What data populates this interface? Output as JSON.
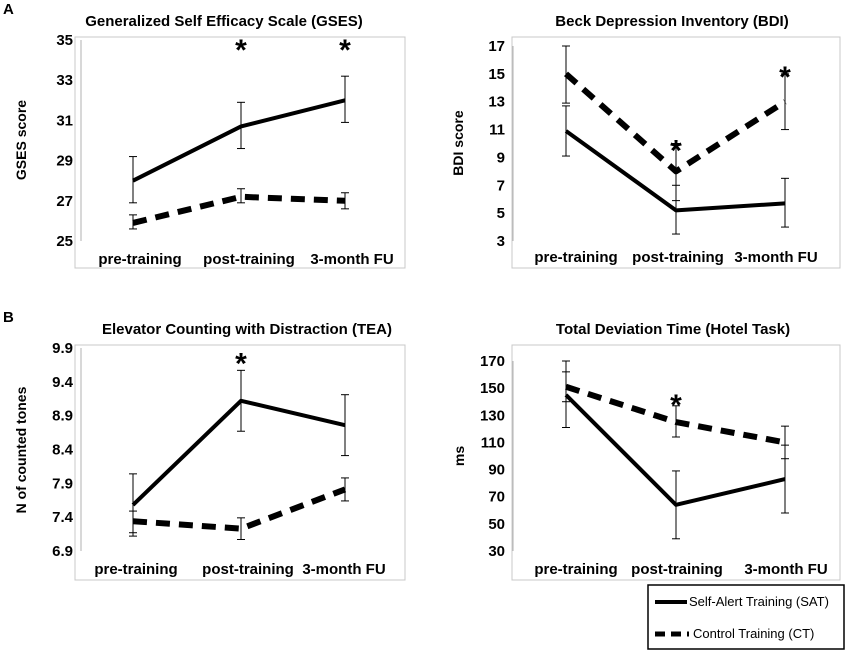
{
  "panel_labels": [
    "A",
    "B"
  ],
  "legend": {
    "sat_label": "Self-Alert Training (SAT)",
    "ct_label": "Control Training (CT)"
  },
  "chart_data": [
    {
      "type": "line",
      "title": "Generalized Self Efficacy Scale (GSES)",
      "xlabel": "",
      "ylabel": "GSES score",
      "categories": [
        "pre-training",
        "post-training",
        "3-month FU"
      ],
      "yticks": [
        "25",
        "27",
        "29",
        "31",
        "33",
        "35"
      ],
      "ylim": [
        25,
        35
      ],
      "series": [
        {
          "name": "Self-Alert Training (SAT)",
          "style": "solid",
          "values": [
            28.0,
            30.7,
            32.0
          ],
          "err_low": [
            26.9,
            29.6,
            30.9
          ],
          "err_high": [
            29.2,
            31.9,
            33.2
          ]
        },
        {
          "name": "Control Training (CT)",
          "style": "dashed",
          "values": [
            25.9,
            27.2,
            27.0
          ],
          "err_low": [
            25.6,
            26.9,
            26.6
          ],
          "err_high": [
            26.3,
            27.6,
            27.4
          ]
        }
      ],
      "significance": [
        {
          "category": 1,
          "label": "*",
          "y": 35.0
        },
        {
          "category": 2,
          "label": "*",
          "y": 35.0
        }
      ]
    },
    {
      "type": "line",
      "title": "Beck Depression Inventory (BDI)",
      "xlabel": "",
      "ylabel": "BDI score",
      "categories": [
        "pre-training",
        "post-training",
        "3-month FU"
      ],
      "yticks": [
        "3",
        "5",
        "7",
        "9",
        "11",
        "13",
        "15",
        "17"
      ],
      "ylim": [
        3,
        17
      ],
      "series": [
        {
          "name": "Self-Alert Training (SAT)",
          "style": "solid",
          "values": [
            10.9,
            5.2,
            5.7
          ],
          "err_low": [
            9.1,
            3.5,
            4.0
          ],
          "err_high": [
            12.7,
            7.0,
            7.5
          ]
        },
        {
          "name": "Control Training (CT)",
          "style": "dashed",
          "values": [
            15.0,
            8.0,
            13.0
          ],
          "err_low": [
            12.9,
            5.9,
            11.0
          ],
          "err_high": [
            17.0,
            10.0,
            15.0
          ]
        }
      ],
      "significance": [
        {
          "category": 1,
          "label": "*",
          "y": 10.2
        },
        {
          "category": 2,
          "label": "*",
          "y": 15.5
        }
      ]
    },
    {
      "type": "line",
      "title": "Elevator Counting with Distraction (TEA)",
      "xlabel": "",
      "ylabel": "N of counted tones",
      "categories": [
        "pre-training",
        "post-training",
        "3-month FU"
      ],
      "yticks": [
        "6.9",
        "7.4",
        "7.9",
        "8.4",
        "8.9",
        "9.4",
        "9.9"
      ],
      "ylim": [
        6.9,
        9.9
      ],
      "series": [
        {
          "name": "Self-Alert Training (SAT)",
          "style": "solid",
          "values": [
            7.58,
            9.12,
            8.76
          ],
          "err_low": [
            7.12,
            8.67,
            8.31
          ],
          "err_high": [
            8.04,
            9.57,
            9.21
          ]
        },
        {
          "name": "Control Training (CT)",
          "style": "dashed",
          "values": [
            7.34,
            7.23,
            7.81
          ],
          "err_low": [
            7.17,
            7.07,
            7.64
          ],
          "err_high": [
            7.49,
            7.39,
            7.98
          ]
        }
      ],
      "significance": [
        {
          "category": 1,
          "label": "*",
          "y": 9.82
        }
      ]
    },
    {
      "type": "line",
      "title": "Total Deviation Time (Hotel Task)",
      "xlabel": "",
      "ylabel": "ms",
      "categories": [
        "pre-training",
        "post-training",
        "3-month FU"
      ],
      "yticks": [
        "30",
        "50",
        "70",
        "90",
        "110",
        "130",
        "150",
        "170"
      ],
      "ylim": [
        30,
        170
      ],
      "series": [
        {
          "name": "Self-Alert Training (SAT)",
          "style": "solid",
          "values": [
            145,
            64,
            83
          ],
          "err_low": [
            121,
            39,
            58
          ],
          "err_high": [
            170,
            89,
            108
          ]
        },
        {
          "name": "Control Training (CT)",
          "style": "dashed",
          "values": [
            151,
            125,
            110
          ],
          "err_low": [
            140,
            114,
            98
          ],
          "err_high": [
            162,
            137,
            122
          ]
        }
      ],
      "significance": [
        {
          "category": 1,
          "label": "*",
          "y": 145
        }
      ]
    }
  ]
}
